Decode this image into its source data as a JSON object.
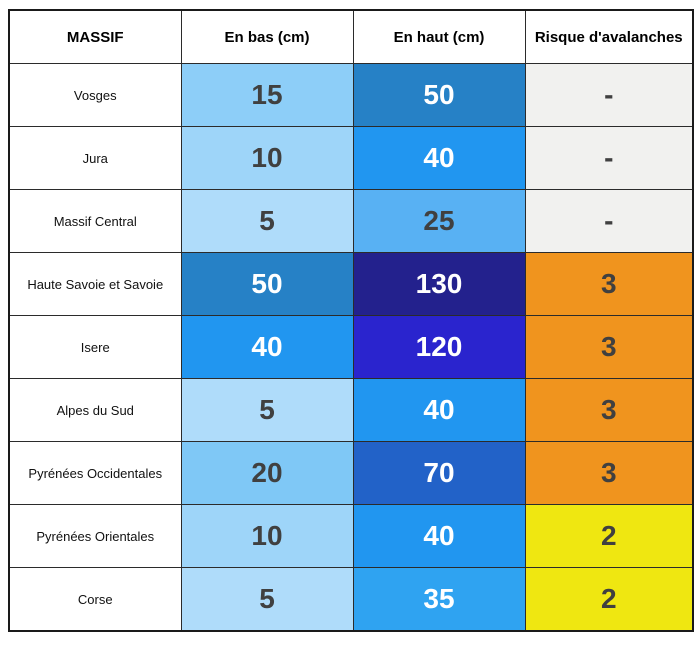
{
  "colors": {
    "outer_border": "#1a1a1a",
    "grid_border": "#2b2b2b",
    "text_dark": "#404040",
    "text_light": "#ffffff",
    "no_risk_gray": "#F1F1EF",
    "risk_2_yellow": "#EFE711",
    "risk_3_orange": "#F0941E",
    "blue_scale": {
      "5": "#AFDCFA",
      "10": "#9ED5F9",
      "15": "#8DCEF8",
      "20": "#7FC8F6",
      "25": "#58B1F3",
      "35": "#2FA3F1",
      "40": "#2196F0",
      "50": "#2681C6",
      "70": "#2262C8",
      "120": "#2A24CE",
      "130": "#23218D"
    }
  },
  "chart_data": {
    "type": "table",
    "columns": [
      "MASSIF",
      "En bas (cm)",
      "En haut (cm)",
      "Risque d'avalanches"
    ],
    "rows": [
      [
        "Vosges",
        15,
        50,
        "-"
      ],
      [
        "Jura",
        10,
        40,
        "-"
      ],
      [
        "Massif Central",
        5,
        25,
        "-"
      ],
      [
        "Haute Savoie et Savoie",
        50,
        130,
        3
      ],
      [
        "Isere",
        40,
        120,
        3
      ],
      [
        "Alpes du Sud",
        5,
        40,
        3
      ],
      [
        "Pyrénées Occidentales",
        20,
        70,
        3
      ],
      [
        "Pyrénées Orientales",
        10,
        40,
        2
      ],
      [
        "Corse",
        5,
        35,
        2
      ]
    ],
    "legend_notes": "Snow depth cells use a blue gradient (darker blue = deeper snow); avalanche risk cells: gray '-' = none, yellow = 2, orange = 3"
  },
  "table": {
    "headers": [
      "MASSIF",
      "En bas (cm)",
      "En haut (cm)",
      "Risque d'avalanches"
    ],
    "rows": [
      {
        "massif": {
          "value": "Vosges",
          "bg": "#ffffff",
          "fg": "#111111"
        },
        "en_bas": {
          "value": "15",
          "bg": "#8DCEF8",
          "fg": "#404040"
        },
        "en_haut": {
          "value": "50",
          "bg": "#2681C6",
          "fg": "#ffffff"
        },
        "risque": {
          "value": "-",
          "bg": "#F1F1EF",
          "fg": "#404040"
        }
      },
      {
        "massif": {
          "value": "Jura",
          "bg": "#ffffff",
          "fg": "#111111"
        },
        "en_bas": {
          "value": "10",
          "bg": "#9ED5F9",
          "fg": "#404040"
        },
        "en_haut": {
          "value": "40",
          "bg": "#2196F0",
          "fg": "#ffffff"
        },
        "risque": {
          "value": "-",
          "bg": "#F1F1EF",
          "fg": "#404040"
        }
      },
      {
        "massif": {
          "value": "Massif Central",
          "bg": "#ffffff",
          "fg": "#111111"
        },
        "en_bas": {
          "value": "5",
          "bg": "#AFDCFA",
          "fg": "#404040"
        },
        "en_haut": {
          "value": "25",
          "bg": "#58B1F3",
          "fg": "#404040"
        },
        "risque": {
          "value": "-",
          "bg": "#F1F1EF",
          "fg": "#404040"
        }
      },
      {
        "massif": {
          "value": "Haute Savoie et Savoie",
          "bg": "#ffffff",
          "fg": "#111111"
        },
        "en_bas": {
          "value": "50",
          "bg": "#2681C6",
          "fg": "#ffffff"
        },
        "en_haut": {
          "value": "130",
          "bg": "#23218D",
          "fg": "#ffffff"
        },
        "risque": {
          "value": "3",
          "bg": "#F0941E",
          "fg": "#404040"
        }
      },
      {
        "massif": {
          "value": "Isere",
          "bg": "#ffffff",
          "fg": "#111111"
        },
        "en_bas": {
          "value": "40",
          "bg": "#2196F0",
          "fg": "#ffffff"
        },
        "en_haut": {
          "value": "120",
          "bg": "#2A24CE",
          "fg": "#ffffff"
        },
        "risque": {
          "value": "3",
          "bg": "#F0941E",
          "fg": "#404040"
        }
      },
      {
        "massif": {
          "value": "Alpes du Sud",
          "bg": "#ffffff",
          "fg": "#111111"
        },
        "en_bas": {
          "value": "5",
          "bg": "#AFDCFA",
          "fg": "#404040"
        },
        "en_haut": {
          "value": "40",
          "bg": "#2196F0",
          "fg": "#ffffff"
        },
        "risque": {
          "value": "3",
          "bg": "#F0941E",
          "fg": "#404040"
        }
      },
      {
        "massif": {
          "value": "Pyrénées Occidentales",
          "bg": "#ffffff",
          "fg": "#111111"
        },
        "en_bas": {
          "value": "20",
          "bg": "#7FC8F6",
          "fg": "#404040"
        },
        "en_haut": {
          "value": "70",
          "bg": "#2262C8",
          "fg": "#ffffff"
        },
        "risque": {
          "value": "3",
          "bg": "#F0941E",
          "fg": "#404040"
        }
      },
      {
        "massif": {
          "value": "Pyrénées Orientales",
          "bg": "#ffffff",
          "fg": "#111111"
        },
        "en_bas": {
          "value": "10",
          "bg": "#9ED5F9",
          "fg": "#404040"
        },
        "en_haut": {
          "value": "40",
          "bg": "#2196F0",
          "fg": "#ffffff"
        },
        "risque": {
          "value": "2",
          "bg": "#EFE711",
          "fg": "#404040"
        }
      },
      {
        "massif": {
          "value": "Corse",
          "bg": "#ffffff",
          "fg": "#111111"
        },
        "en_bas": {
          "value": "5",
          "bg": "#AFDCFA",
          "fg": "#404040"
        },
        "en_haut": {
          "value": "35",
          "bg": "#2FA3F1",
          "fg": "#ffffff"
        },
        "risque": {
          "value": "2",
          "bg": "#EFE711",
          "fg": "#404040"
        }
      }
    ]
  }
}
